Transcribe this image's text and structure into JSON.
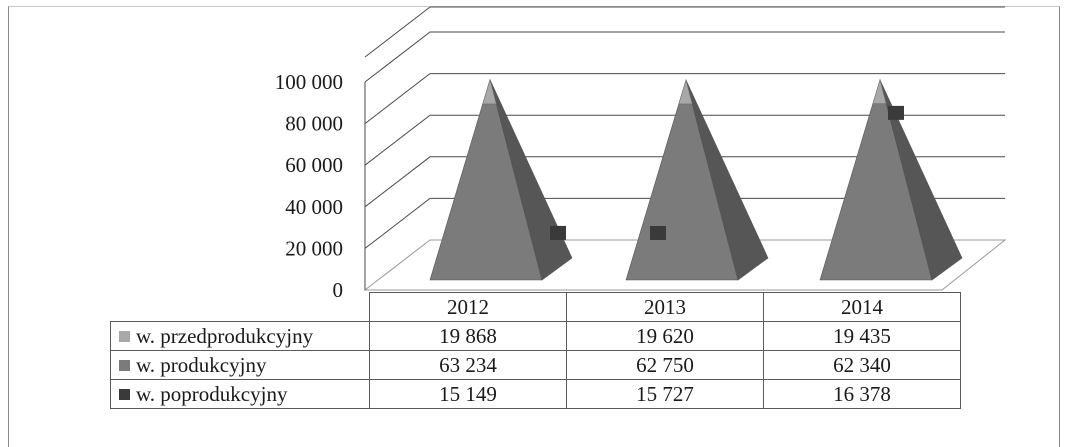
{
  "colors": {
    "przedprodukcyjny": "#a8a8a8",
    "produkcyjny": "#7b7b7b",
    "poprodukcyjny": "#3a3a3a",
    "grid": "#4a4a4a"
  },
  "chart_data": {
    "type": "bar",
    "shape": "3d-pyramid-stacked",
    "categories": [
      "2012",
      "2013",
      "2014"
    ],
    "series": [
      {
        "name": "w. przedprodukcyjny",
        "values": [
          19868,
          19620,
          19435
        ]
      },
      {
        "name": "w. produkcyjny",
        "values": [
          63234,
          62750,
          62340
        ]
      },
      {
        "name": "w. poprodukcyjny",
        "values": [
          15149,
          15727,
          16378
        ]
      }
    ],
    "y_ticks": [
      "0",
      "20 000",
      "40 000",
      "60 000",
      "80 000",
      "100 000"
    ],
    "ylim": [
      0,
      100000
    ],
    "grid": true,
    "legend": "data-table-below",
    "table": {
      "rows": [
        {
          "label": "w. przedprodukcyjny",
          "cells": [
            "19 868",
            "19 620",
            "19 435"
          ]
        },
        {
          "label": "w. produkcyjny",
          "cells": [
            "63 234",
            "62 750",
            "62 340"
          ]
        },
        {
          "label": "w. poprodukcyjny",
          "cells": [
            "15 149",
            "15 727",
            "16 378"
          ]
        }
      ]
    }
  }
}
